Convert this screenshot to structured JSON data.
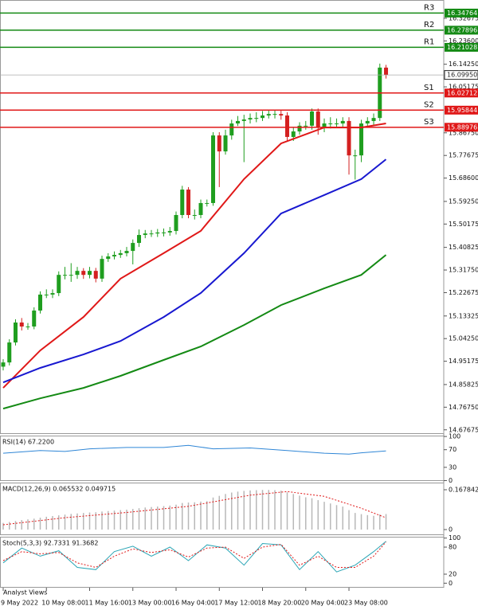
{
  "chart_data": [
    {
      "type": "candlestick",
      "xlim": [
        -0.516,
        71.35
      ],
      "ylim": [
        14.66,
        16.4
      ],
      "yticks": [
        16.32675,
        {
          "value": 16.236,
          "label": "16.23600"
        },
        {
          "value": 16.1425,
          "label": "16.14250"
        },
        16.05175,
        {
          "value": 15.8675,
          "label": "15.86750"
        },
        15.77675,
        {
          "value": 15.686,
          "label": "15.68600"
        },
        {
          "value": 15.5925,
          "label": "15.59250"
        },
        15.50175,
        15.40825,
        {
          "value": 15.3175,
          "label": "15.31750"
        },
        15.22675,
        15.13325,
        {
          "value": 15.0425,
          "label": "15.04250"
        },
        14.95175,
        14.85825,
        {
          "value": 14.7675,
          "label": "14.76750"
        },
        14.67675
      ],
      "xticks": [
        {
          "value": 0,
          "label": "9 May 2022"
        },
        {
          "value": 7,
          "label": "10 May 08:00"
        },
        {
          "value": 14,
          "label": "11 May 16:00"
        },
        {
          "value": 21,
          "label": "13 May 00:00"
        },
        {
          "value": 28,
          "label": "16 May 04:00"
        },
        {
          "value": 35,
          "label": "17 May 12:00"
        },
        {
          "value": 42,
          "label": "18 May 20:00"
        },
        {
          "value": 49,
          "label": "20 May 04:00"
        },
        {
          "value": 56,
          "label": "23 May 08:00"
        }
      ],
      "series": [
        {
          "type": "candlestick",
          "up_color": "#1f9e1f",
          "down_color": "#d42020",
          "open": [
            14.93,
            14.947,
            15.027,
            15.107,
            15.091,
            15.091,
            15.155,
            15.219,
            15.219,
            15.225,
            15.298,
            15.298,
            15.298,
            15.314,
            15.298,
            15.314,
            15.283,
            15.362,
            15.372,
            15.378,
            15.385,
            15.394,
            15.426,
            15.458,
            15.464,
            15.464,
            15.468,
            15.468,
            15.474,
            15.538,
            15.64,
            15.538,
            15.538,
            15.586,
            15.586,
            15.857,
            15.793,
            15.857,
            15.905,
            15.915,
            15.921,
            15.927,
            15.927,
            15.937,
            15.943,
            15.943,
            15.937,
            15.851,
            15.873,
            15.896,
            15.896,
            15.953,
            15.889,
            15.905,
            15.905,
            15.905,
            15.915,
            15.777,
            15.777,
            15.905,
            15.915,
            15.927,
            16.129
          ],
          "high": [
            14.96,
            15.04,
            15.12,
            15.125,
            15.105,
            15.168,
            15.232,
            15.24,
            15.24,
            15.312,
            15.33,
            15.345,
            15.33,
            15.325,
            15.33,
            15.326,
            15.375,
            15.385,
            15.392,
            15.398,
            15.41,
            15.44,
            15.48,
            15.478,
            15.478,
            15.482,
            15.484,
            15.49,
            15.552,
            15.655,
            15.65,
            15.56,
            15.6,
            15.6,
            15.87,
            15.87,
            15.88,
            15.92,
            15.935,
            15.94,
            15.945,
            15.95,
            15.955,
            15.958,
            15.96,
            15.958,
            15.95,
            15.89,
            15.91,
            15.915,
            15.965,
            15.965,
            15.925,
            15.93,
            15.925,
            15.93,
            15.93,
            15.8,
            15.92,
            15.93,
            15.945,
            16.145,
            16.14
          ],
          "low": [
            14.915,
            14.935,
            15.015,
            15.075,
            15.078,
            15.08,
            15.143,
            15.205,
            15.205,
            15.213,
            15.28,
            15.27,
            15.282,
            15.282,
            15.284,
            15.268,
            15.27,
            15.35,
            15.36,
            15.366,
            15.372,
            15.34,
            15.41,
            15.445,
            15.45,
            15.45,
            15.452,
            15.455,
            15.46,
            15.525,
            15.525,
            15.52,
            15.525,
            15.572,
            15.575,
            15.65,
            15.78,
            15.84,
            15.895,
            15.75,
            15.905,
            15.91,
            15.915,
            15.925,
            15.925,
            15.92,
            15.835,
            15.835,
            15.86,
            15.88,
            15.88,
            15.86,
            15.87,
            15.885,
            15.888,
            15.89,
            15.7,
            15.68,
            15.75,
            15.89,
            15.9,
            15.915,
            16.085
          ],
          "close": [
            14.947,
            15.027,
            15.107,
            15.091,
            15.091,
            15.155,
            15.219,
            15.219,
            15.225,
            15.298,
            15.298,
            15.298,
            15.314,
            15.298,
            15.314,
            15.283,
            15.362,
            15.372,
            15.378,
            15.385,
            15.394,
            15.426,
            15.458,
            15.464,
            15.464,
            15.468,
            15.468,
            15.474,
            15.538,
            15.64,
            15.538,
            15.538,
            15.586,
            15.586,
            15.857,
            15.793,
            15.857,
            15.905,
            15.915,
            15.921,
            15.927,
            15.927,
            15.937,
            15.943,
            15.943,
            15.937,
            15.851,
            15.873,
            15.896,
            15.896,
            15.953,
            15.889,
            15.905,
            15.905,
            15.905,
            15.915,
            15.777,
            15.777,
            15.905,
            15.915,
            15.927,
            16.129,
            16.0995
          ]
        },
        {
          "type": "line",
          "color": "#e01818",
          "x": [
            0,
            6,
            13,
            19,
            26,
            32,
            39,
            45,
            52,
            58,
            62
          ],
          "values": [
            14.845,
            14.995,
            15.129,
            15.283,
            15.385,
            15.474,
            15.682,
            15.825,
            15.889,
            15.889,
            15.905
          ]
        },
        {
          "type": "line",
          "color": "#1818d0",
          "x": [
            0,
            6,
            13,
            19,
            26,
            32,
            39,
            45,
            52,
            58,
            62
          ],
          "values": [
            14.867,
            14.925,
            14.979,
            15.033,
            15.129,
            15.225,
            15.385,
            15.544,
            15.618,
            15.682,
            15.761
          ]
        },
        {
          "type": "line",
          "color": "#148a14",
          "x": [
            0,
            6,
            13,
            19,
            26,
            32,
            39,
            45,
            52,
            58,
            62
          ],
          "values": [
            14.762,
            14.803,
            14.845,
            14.893,
            14.957,
            15.011,
            15.097,
            15.177,
            15.244,
            15.298,
            15.378
          ]
        }
      ],
      "levels": [
        {
          "name": "R3",
          "value": 16.34764,
          "color": "#148a14"
        },
        {
          "name": "R2",
          "value": 16.27896,
          "color": "#148a14"
        },
        {
          "name": "R1",
          "value": 16.21028,
          "color": "#148a14"
        },
        {
          "name": "S1",
          "value": 16.02712,
          "color": "#e01818"
        },
        {
          "name": "S2",
          "value": 15.95844,
          "color": "#e01818"
        },
        {
          "name": "S3",
          "value": 15.88976,
          "color": "#e01818"
        }
      ],
      "last_price": {
        "value": 16.0995,
        "label": "16.09950",
        "color": "#222222"
      }
    },
    {
      "type": "line",
      "title": "RSI(14) 67.2200",
      "ylim": [
        -1,
        102
      ],
      "yticks": [
        100,
        70,
        30,
        0
      ],
      "series": [
        {
          "type": "line",
          "color": "#2f86d6",
          "x": [
            0,
            6,
            10,
            14,
            20,
            26,
            30,
            34,
            40,
            46,
            52,
            56,
            58,
            62
          ],
          "values": [
            62,
            68,
            66,
            72,
            75,
            75,
            80,
            72,
            74,
            68,
            62,
            60,
            63,
            67.22
          ]
        }
      ]
    },
    {
      "type": "bar",
      "title": "MACD(12,26,9) 0.065532 0.049715",
      "ylim": [
        -0.0235,
        0.198
      ],
      "yticks": [
        0.167842,
        0
      ],
      "series": [
        {
          "type": "bar",
          "color": "#b8b8b8",
          "values": [
            0.028,
            0.032,
            0.036,
            0.04,
            0.043,
            0.046,
            0.05,
            0.054,
            0.057,
            0.06,
            0.063,
            0.066,
            0.068,
            0.07,
            0.072,
            0.073,
            0.076,
            0.078,
            0.08,
            0.082,
            0.084,
            0.087,
            0.09,
            0.093,
            0.095,
            0.097,
            0.099,
            0.101,
            0.105,
            0.112,
            0.114,
            0.115,
            0.118,
            0.12,
            0.135,
            0.142,
            0.15,
            0.156,
            0.16,
            0.163,
            0.165,
            0.166,
            0.167,
            0.167,
            0.166,
            0.164,
            0.157,
            0.15,
            0.143,
            0.136,
            0.132,
            0.124,
            0.117,
            0.11,
            0.103,
            0.097,
            0.082,
            0.07,
            0.065,
            0.061,
            0.058,
            0.064,
            0.065532
          ]
        },
        {
          "type": "line",
          "color": "#e01818",
          "style": "dotted",
          "x": [
            0,
            10,
            20,
            30,
            40,
            46,
            52,
            58,
            62
          ],
          "values": [
            0.02,
            0.05,
            0.072,
            0.098,
            0.145,
            0.16,
            0.14,
            0.09,
            0.049715
          ]
        }
      ]
    },
    {
      "type": "line",
      "title": "Stoch(5,3,3) 92.7331 91.3682",
      "ylim": [
        -10,
        103
      ],
      "yticks": [
        100,
        80,
        20,
        0
      ],
      "series": [
        {
          "type": "line",
          "color": "#2aa5b5",
          "x": [
            0,
            3,
            6,
            9,
            12,
            15,
            18,
            21,
            24,
            27,
            30,
            33,
            36,
            39,
            42,
            45,
            48,
            51,
            54,
            57,
            60,
            62
          ],
          "values": [
            45,
            78,
            60,
            72,
            35,
            30,
            70,
            82,
            60,
            80,
            50,
            85,
            78,
            40,
            88,
            85,
            30,
            70,
            25,
            40,
            70,
            92.7331
          ]
        },
        {
          "type": "line",
          "color": "#e01818",
          "style": "dotted",
          "x": [
            0,
            3,
            6,
            9,
            12,
            15,
            18,
            21,
            24,
            27,
            30,
            33,
            36,
            39,
            42,
            45,
            48,
            51,
            54,
            57,
            60,
            62
          ],
          "values": [
            50,
            70,
            65,
            68,
            45,
            35,
            60,
            76,
            68,
            74,
            58,
            78,
            80,
            55,
            80,
            86,
            40,
            60,
            35,
            35,
            60,
            91.3682
          ]
        }
      ]
    }
  ],
  "footer": "Analyst Views"
}
